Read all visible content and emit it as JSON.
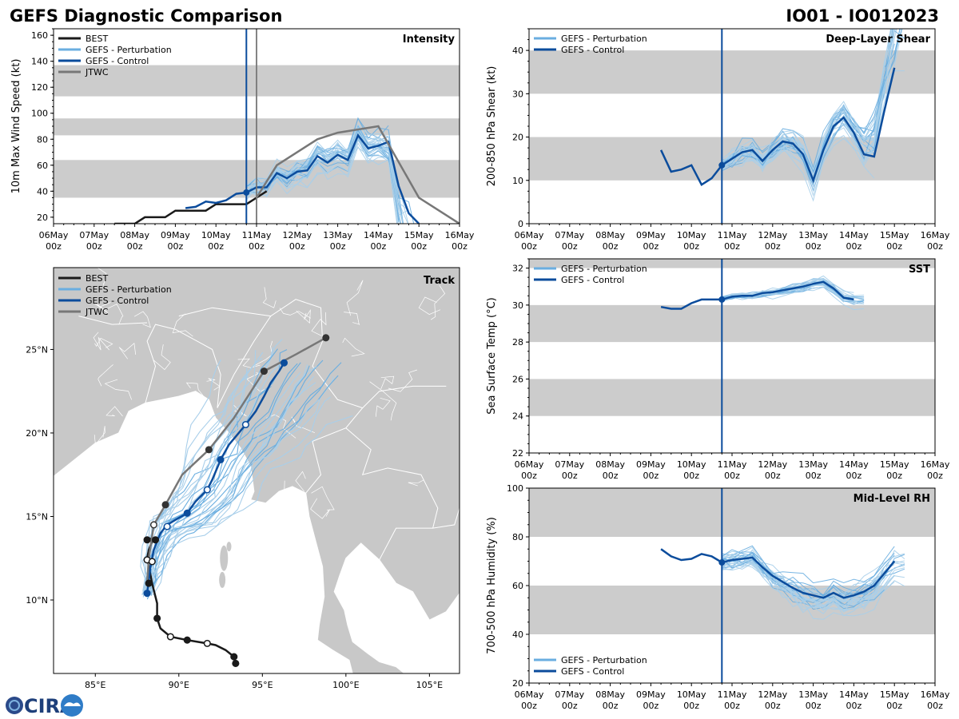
{
  "header": {
    "title": "GEFS Diagnostic Comparison",
    "storm_id": "IO01 - IO012023"
  },
  "colors": {
    "best": "#1a1a1a",
    "perturbation": "#6aaee0",
    "perturbation_thin": "#a9cfea",
    "control": "#0b4c9c",
    "jtwc": "#777777",
    "band": "#cccccc",
    "land": "#c8c8c8",
    "init_line": "#0b4c9c",
    "jtwc_line": "#777777"
  },
  "chart_data": [
    {
      "id": "intensity",
      "type": "line",
      "title": "Intensity",
      "xlabel": "",
      "ylabel": "10m Max Wind Speed (kt)",
      "x_ticks": [
        "06May\n00z",
        "07May\n00z",
        "08May\n00z",
        "09May\n00z",
        "10May\n00z",
        "11May\n00z",
        "12May\n00z",
        "13May\n00z",
        "14May\n00z",
        "15May\n00z",
        "16May\n00z"
      ],
      "xlim": [
        0,
        10
      ],
      "ylim": [
        15,
        165
      ],
      "y_ticks": [
        20,
        40,
        60,
        80,
        100,
        120,
        140,
        160
      ],
      "bands": [
        [
          35,
          64
        ],
        [
          83,
          96
        ],
        [
          113,
          137
        ]
      ],
      "init_time": 4.75,
      "jtwc_time": 5.0,
      "legend": [
        "BEST",
        "GEFS - Perturbation",
        "GEFS - Control",
        "JTWC"
      ],
      "series": [
        {
          "name": "BEST",
          "x": [
            1.5,
            2.0,
            2.25,
            2.75,
            3.0,
            3.5,
            3.75,
            4.0,
            4.25,
            4.5,
            4.75,
            5.0,
            5.25
          ],
          "y": [
            15,
            15,
            20,
            20,
            25,
            25,
            25,
            30,
            30,
            30,
            30,
            35,
            40
          ]
        },
        {
          "name": "GEFS - Control",
          "x": [
            3.25,
            3.5,
            3.75,
            4.0,
            4.25,
            4.5,
            4.75,
            5.0,
            5.25,
            5.5,
            5.75,
            6.0,
            6.25,
            6.5,
            6.75,
            7.0,
            7.25,
            7.5,
            7.75,
            8.0,
            8.25,
            8.5,
            8.75,
            9.0
          ],
          "y": [
            27,
            28,
            32,
            31,
            33,
            38,
            39,
            43,
            43,
            54,
            50,
            55,
            56,
            67,
            62,
            68,
            64,
            83,
            73,
            75,
            78,
            44,
            23,
            15
          ]
        },
        {
          "name": "JTWC",
          "x": [
            5.0,
            5.5,
            6.5,
            7.0,
            8.0,
            9.0,
            10.0
          ],
          "y": [
            35,
            60,
            80,
            85,
            90,
            35,
            15
          ]
        }
      ],
      "perturbation_count": 30
    },
    {
      "id": "shear",
      "type": "line",
      "title": "Deep-Layer Shear",
      "ylabel": "200-850 hPa Shear (kt)",
      "xlim": [
        0,
        10
      ],
      "ylim": [
        0,
        45
      ],
      "y_ticks": [
        0,
        10,
        20,
        30,
        40
      ],
      "bands": [
        [
          10,
          20
        ],
        [
          30,
          40
        ]
      ],
      "init_time": 4.75,
      "legend": [
        "GEFS - Perturbation",
        "GEFS - Control"
      ],
      "series": [
        {
          "name": "GEFS - Control",
          "x": [
            3.25,
            3.5,
            3.75,
            4.0,
            4.25,
            4.5,
            4.75,
            5.0,
            5.25,
            5.5,
            5.75,
            6.0,
            6.25,
            6.5,
            6.75,
            7.0,
            7.25,
            7.5,
            7.75,
            8.0,
            8.25,
            8.5,
            8.75,
            9.0
          ],
          "y": [
            17,
            12,
            12.5,
            13.5,
            9,
            10.5,
            13.5,
            15,
            16.5,
            17,
            14.5,
            17,
            19,
            18.5,
            16,
            10,
            17,
            22.5,
            24.5,
            21,
            16,
            15.5,
            26,
            36
          ]
        }
      ],
      "perturbation_count": 30
    },
    {
      "id": "sst",
      "type": "line",
      "title": "SST",
      "ylabel": "Sea Surface Temp (°C)",
      "xlim": [
        0,
        10
      ],
      "ylim": [
        22,
        32.5
      ],
      "y_ticks": [
        22,
        24,
        26,
        28,
        30,
        32
      ],
      "bands": [
        [
          24,
          26
        ],
        [
          28,
          30
        ],
        [
          32,
          32.5
        ]
      ],
      "init_time": 4.75,
      "legend": [
        "GEFS - Perturbation",
        "GEFS - Control"
      ],
      "series": [
        {
          "name": "GEFS - Control",
          "x": [
            3.25,
            3.5,
            3.75,
            4.0,
            4.25,
            4.5,
            4.75,
            5.0,
            5.25,
            5.5,
            5.75,
            6.0,
            6.25,
            6.5,
            6.75,
            7.0,
            7.25,
            7.5,
            7.75,
            8.0
          ],
          "y": [
            29.9,
            29.8,
            29.8,
            30.1,
            30.3,
            30.3,
            30.3,
            30.45,
            30.5,
            30.5,
            30.65,
            30.7,
            30.8,
            30.9,
            31.0,
            31.15,
            31.25,
            30.9,
            30.4,
            30.3
          ]
        }
      ],
      "perturbation_count": 30
    },
    {
      "id": "rh",
      "type": "line",
      "title": "Mid-Level RH",
      "ylabel": "700-500 hPa Humidity (%)",
      "xlim": [
        0,
        10
      ],
      "ylim": [
        20,
        100
      ],
      "y_ticks": [
        20,
        40,
        60,
        80,
        100
      ],
      "bands": [
        [
          40,
          60
        ],
        [
          80,
          100
        ]
      ],
      "init_time": 4.75,
      "legend": [
        "GEFS - Perturbation",
        "GEFS - Control"
      ],
      "series": [
        {
          "name": "GEFS - Control",
          "x": [
            3.25,
            3.5,
            3.75,
            4.0,
            4.25,
            4.5,
            4.75,
            5.0,
            5.25,
            5.5,
            5.75,
            6.0,
            6.25,
            6.5,
            6.75,
            7.0,
            7.25,
            7.5,
            7.75,
            8.0,
            8.25,
            8.5,
            8.75,
            9.0
          ],
          "y": [
            75,
            72,
            70.5,
            71,
            73,
            72,
            69.5,
            70.5,
            71,
            71.5,
            67.5,
            64,
            61.5,
            59,
            57,
            56,
            55,
            57,
            55,
            56,
            57.5,
            60,
            65,
            70
          ]
        }
      ],
      "perturbation_count": 30
    },
    {
      "id": "track",
      "type": "line",
      "title": "Track",
      "x_ticks": [
        "85°E",
        "90°E",
        "95°E",
        "100°E",
        "105°E"
      ],
      "x_tick_values": [
        85,
        90,
        95,
        100,
        105
      ],
      "y_ticks": [
        "10°N",
        "15°N",
        "20°N",
        "25°N"
      ],
      "y_tick_values": [
        10,
        15,
        20,
        25
      ],
      "xlim": [
        82.5,
        106.8
      ],
      "ylim": [
        5.6,
        29.9
      ],
      "legend": [
        "BEST",
        "GEFS - Perturbation",
        "GEFS - Control",
        "JTWC"
      ],
      "series": [
        {
          "name": "BEST",
          "lon": [
            93.4,
            93.3,
            92.8,
            92.2,
            91.7,
            90.5,
            89.5,
            88.9,
            88.7,
            88.7,
            88.5,
            88.4,
            88.3,
            88.2,
            88.1,
            88.2,
            88.4,
            88.6,
            88.4,
            88.1
          ],
          "lat": [
            6.2,
            6.6,
            7.0,
            7.3,
            7.4,
            7.6,
            7.8,
            8.3,
            8.9,
            9.8,
            10.6,
            11.0,
            11.5,
            12.0,
            12.5,
            13.0,
            13.5,
            13.6,
            13.7,
            13.6
          ]
        },
        {
          "name": "GEFS - Control",
          "lon": [
            88.1,
            88.2,
            88.3,
            88.5,
            88.9,
            89.3,
            89.8,
            90.5,
            91.0,
            91.7,
            92.0,
            92.5,
            93.0,
            93.5,
            94.0,
            94.6,
            95.1,
            95.5,
            96.0,
            96.3
          ],
          "lat": [
            10.4,
            11.2,
            12.0,
            13.0,
            14.0,
            14.5,
            14.8,
            15.2,
            15.9,
            16.6,
            17.2,
            18.4,
            19.3,
            19.9,
            20.5,
            21.3,
            22.2,
            23.0,
            23.7,
            24.2
          ]
        },
        {
          "name": "JTWC",
          "lon": [
            88.1,
            88.2,
            88.5,
            89.2,
            90.2,
            91.8,
            93.3,
            95.1,
            97.0,
            98.8
          ],
          "lat": [
            11.0,
            12.5,
            14.5,
            15.7,
            17.5,
            19.0,
            20.9,
            23.7,
            24.7,
            25.7
          ]
        }
      ],
      "markers": {
        "best_filled": [
          [
            93.4,
            6.2
          ],
          [
            93.3,
            6.6
          ],
          [
            90.5,
            7.6
          ],
          [
            88.7,
            8.9
          ],
          [
            88.2,
            11.0
          ],
          [
            88.1,
            13.6
          ],
          [
            88.6,
            13.6
          ]
        ],
        "best_open": [
          [
            89.5,
            7.8
          ],
          [
            91.7,
            7.4
          ],
          [
            88.1,
            12.4
          ],
          [
            88.4,
            12.3
          ]
        ],
        "control_filled": [
          [
            88.1,
            10.4
          ],
          [
            90.5,
            15.2
          ],
          [
            92.5,
            18.4
          ],
          [
            96.3,
            24.2
          ]
        ],
        "control_open": [
          [
            89.3,
            14.4
          ],
          [
            91.7,
            16.6
          ],
          [
            94.0,
            20.5
          ]
        ],
        "jtwc_filled": [
          [
            89.2,
            15.7
          ],
          [
            91.8,
            19.0
          ],
          [
            95.1,
            23.7
          ],
          [
            98.8,
            25.7
          ]
        ],
        "jtwc_open": [
          [
            88.5,
            14.5
          ]
        ]
      },
      "perturbation_count": 30
    }
  ],
  "x_tick_labels": {
    "days": [
      "06May",
      "07May",
      "08May",
      "09May",
      "10May",
      "11May",
      "12May",
      "13May",
      "14May",
      "15May",
      "16May"
    ],
    "hour": "00z"
  },
  "logo": {
    "text": "CIRA"
  }
}
